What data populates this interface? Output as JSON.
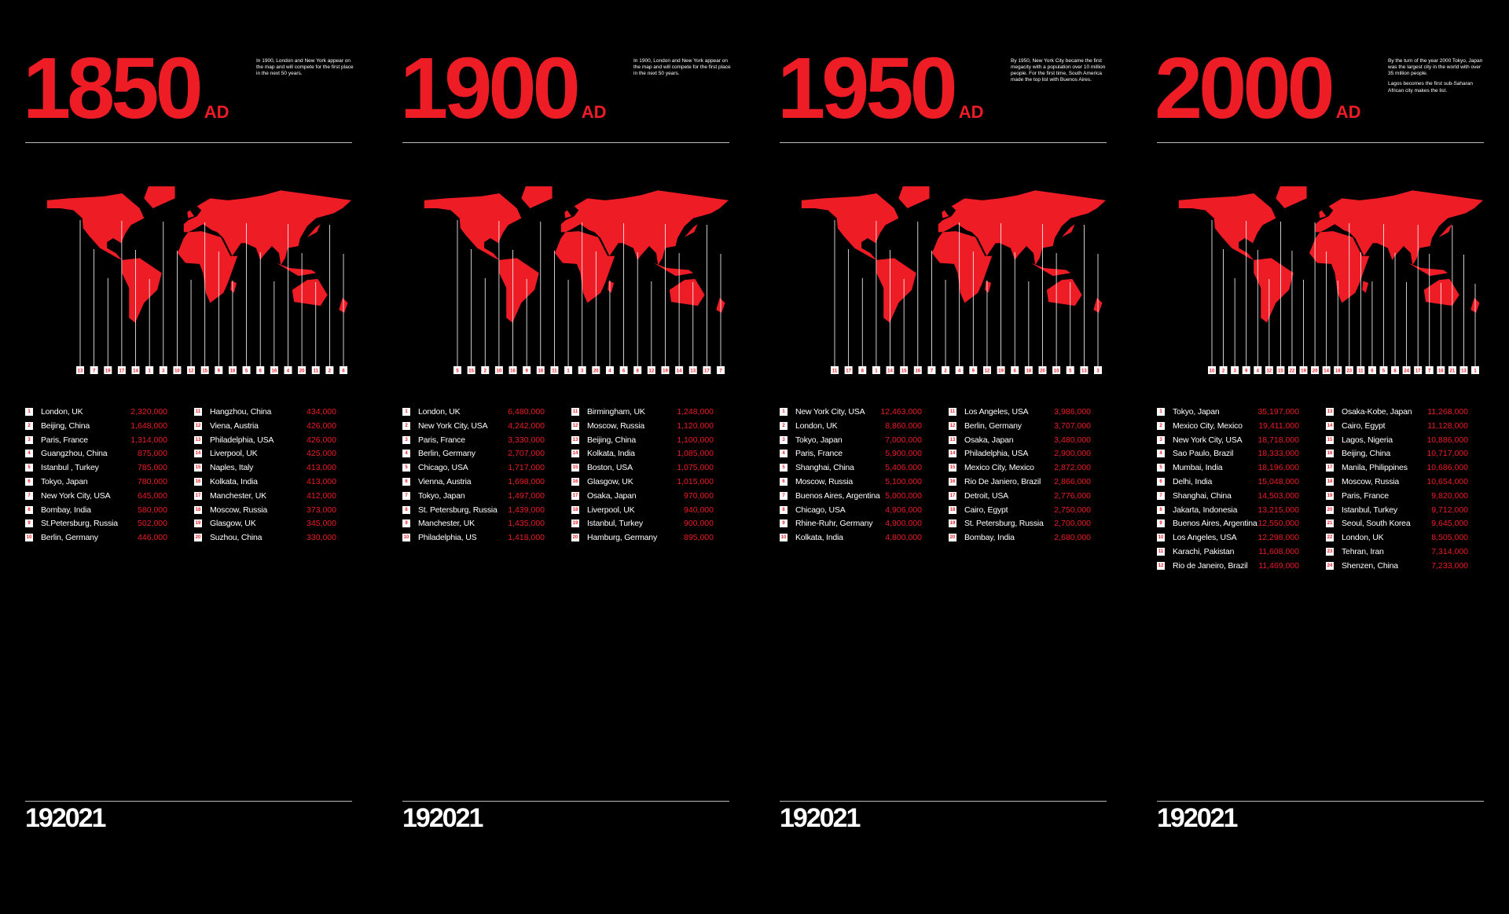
{
  "panels": [
    {
      "year": "1850",
      "era": "AD",
      "description": [
        "In 1900, London and New York appear on the map and will compete for the first place in the next 50 years."
      ],
      "map_markers": [
        13,
        7,
        19,
        17,
        14,
        1,
        3,
        10,
        12,
        15,
        9,
        18,
        5,
        8,
        16,
        4,
        20,
        11,
        2,
        6
      ],
      "cities": [
        {
          "rank": 1,
          "name": "London, UK",
          "population": "2,320,000"
        },
        {
          "rank": 2,
          "name": "Beijing, China",
          "population": "1,648,000"
        },
        {
          "rank": 3,
          "name": "Paris, France",
          "population": "1,314,000"
        },
        {
          "rank": 4,
          "name": "Guangzhou, China",
          "population": "875,000"
        },
        {
          "rank": 5,
          "name": "Istanbul , Turkey",
          "population": "785,000"
        },
        {
          "rank": 6,
          "name": "Tokyo, Japan",
          "population": "780,000"
        },
        {
          "rank": 7,
          "name": "New York City, USA",
          "population": "645,000"
        },
        {
          "rank": 8,
          "name": "Bombay, India",
          "population": "580,000"
        },
        {
          "rank": 9,
          "name": "St.Petersburg, Russia",
          "population": "502,000"
        },
        {
          "rank": 10,
          "name": "Berlin, Germany",
          "population": "446,000"
        },
        {
          "rank": 11,
          "name": "Hangzhou, China",
          "population": "434,000"
        },
        {
          "rank": 12,
          "name": "Viena, Austria",
          "population": "426,000"
        },
        {
          "rank": 13,
          "name": "Philadelphia, USA",
          "population": "426,000"
        },
        {
          "rank": 14,
          "name": "Liverpool, UK",
          "population": "425,000"
        },
        {
          "rank": 15,
          "name": "Naples, Italy",
          "population": "413,000"
        },
        {
          "rank": 16,
          "name": "Kolkata, India",
          "population": "413,000"
        },
        {
          "rank": 17,
          "name": "Manchester, UK",
          "population": "412,000"
        },
        {
          "rank": 18,
          "name": "Moscow, Russia",
          "population": "373,000"
        },
        {
          "rank": 19,
          "name": "Glasgow, UK",
          "population": "345,000"
        },
        {
          "rank": 20,
          "name": "Suzhou, China",
          "population": "330,000"
        }
      ]
    },
    {
      "year": "1900",
      "era": "AD",
      "description": [
        "In 1900, London and New York appear on the map and will compete for the first place in the next 50 years."
      ],
      "map_markers": [
        5,
        15,
        2,
        10,
        16,
        9,
        18,
        11,
        1,
        3,
        20,
        4,
        6,
        8,
        12,
        19,
        14,
        13,
        17,
        7
      ],
      "cities": [
        {
          "rank": 1,
          "name": "London, UK",
          "population": "6,480,000"
        },
        {
          "rank": 2,
          "name": "New York City, USA",
          "population": "4,242,000"
        },
        {
          "rank": 3,
          "name": "Paris, France",
          "population": "3,330,000"
        },
        {
          "rank": 4,
          "name": "Berlin, Germany",
          "population": "2,707,000"
        },
        {
          "rank": 5,
          "name": "Chicago, USA",
          "population": "1,717,000"
        },
        {
          "rank": 6,
          "name": "Vienna, Austria",
          "population": "1,698,000"
        },
        {
          "rank": 7,
          "name": "Tokyo, Japan",
          "population": "1,497,000"
        },
        {
          "rank": 8,
          "name": "St. Petersburg, Russia",
          "population": "1,439,000"
        },
        {
          "rank": 9,
          "name": "Manchester, UK",
          "population": "1,435,000"
        },
        {
          "rank": 10,
          "name": "Philadelphia, US",
          "population": "1,418,000"
        },
        {
          "rank": 11,
          "name": "Birmingham, UK",
          "population": "1,248,000"
        },
        {
          "rank": 12,
          "name": "Moscow, Russia",
          "population": "1,120,000"
        },
        {
          "rank": 13,
          "name": "Beijing, China",
          "population": "1,100,000"
        },
        {
          "rank": 14,
          "name": "Kolkata, India",
          "population": "1,085,000"
        },
        {
          "rank": 15,
          "name": "Boston, USA",
          "population": "1,075,000"
        },
        {
          "rank": 16,
          "name": "Glasgow, UK",
          "population": "1,015,000"
        },
        {
          "rank": 17,
          "name": "Osaka, Japan",
          "population": "970,000"
        },
        {
          "rank": 18,
          "name": "Liverpool, UK",
          "population": "940,000"
        },
        {
          "rank": 19,
          "name": "Istanbul, Turkey",
          "population": "900,000"
        },
        {
          "rank": 20,
          "name": "Hamburg, Germany",
          "population": "895,000"
        }
      ]
    },
    {
      "year": "1950",
      "era": "AD",
      "description": [
        "By 1950, New York City became the first megacity with a population over 10 million people.  For the first time, South America made the top list with Buenos Aires."
      ],
      "map_markers": [
        11,
        17,
        8,
        1,
        14,
        15,
        16,
        7,
        2,
        4,
        9,
        12,
        19,
        6,
        18,
        20,
        10,
        5,
        13,
        3
      ],
      "cities": [
        {
          "rank": 1,
          "name": "New York City, USA",
          "population": "12,463,000"
        },
        {
          "rank": 2,
          "name": "London, UK",
          "population": "8,860,000"
        },
        {
          "rank": 3,
          "name": "Tokyo, Japan",
          "population": "7,000,000"
        },
        {
          "rank": 4,
          "name": "Paris, France",
          "population": "5,900,000"
        },
        {
          "rank": 5,
          "name": "Shanghai, China",
          "population": "5,406,000"
        },
        {
          "rank": 6,
          "name": "Moscow, Russia",
          "population": "5,100,000"
        },
        {
          "rank": 7,
          "name": "Buenos Aires, Argentina",
          "population": "5,000,000"
        },
        {
          "rank": 8,
          "name": "Chicago, USA",
          "population": "4,906,000"
        },
        {
          "rank": 9,
          "name": "Rhine-Ruhr, Germany",
          "population": "4,900,000"
        },
        {
          "rank": 10,
          "name": "Kolkata, India",
          "population": "4,800,000"
        },
        {
          "rank": 11,
          "name": "Los Angeles, USA",
          "population": "3,986,000"
        },
        {
          "rank": 12,
          "name": "Berlin, Germany",
          "population": "3,707,000"
        },
        {
          "rank": 13,
          "name": "Osaka, Japan",
          "population": "3,480,000"
        },
        {
          "rank": 14,
          "name": "Philadelphia, USA",
          "population": "2,900,000"
        },
        {
          "rank": 15,
          "name": "Mexico City, Mexico",
          "population": "2,872,000"
        },
        {
          "rank": 16,
          "name": "Rio De Janiero, Brazil",
          "population": "2,866,000"
        },
        {
          "rank": 17,
          "name": "Detroit, USA",
          "population": "2,776,000"
        },
        {
          "rank": 18,
          "name": "Cairo, Egypt",
          "population": "2,750,000"
        },
        {
          "rank": 19,
          "name": "St. Petersburg, Russia",
          "population": "2,700,000"
        },
        {
          "rank": 20,
          "name": "Bombay, India",
          "population": "2,680,000"
        }
      ]
    },
    {
      "year": "2000",
      "era": "AD",
      "description": [
        "By the turn of the year 2000 Tokyo, Japan was the largest city in the world with over 35 million people.",
        "Lagos becomes the first sub-Saharan African city makes the list."
      ],
      "map_markers": [
        10,
        2,
        3,
        9,
        4,
        12,
        15,
        22,
        19,
        20,
        14,
        18,
        23,
        11,
        6,
        5,
        8,
        24,
        17,
        7,
        16,
        21,
        13,
        1
      ],
      "cities": [
        {
          "rank": 1,
          "name": "Tokyo, Japan",
          "population": "35,197,000"
        },
        {
          "rank": 2,
          "name": "Mexico City, Mexico",
          "population": "19,411,000"
        },
        {
          "rank": 3,
          "name": "New York City, USA",
          "population": "18,718,000"
        },
        {
          "rank": 4,
          "name": "Sao Paulo, Brazil",
          "population": "18,333,000"
        },
        {
          "rank": 5,
          "name": "Mumbai, India",
          "population": "18,196,000"
        },
        {
          "rank": 6,
          "name": "Delhi, India",
          "population": "15,048,000"
        },
        {
          "rank": 7,
          "name": "Shanghai, China",
          "population": "14,503,000"
        },
        {
          "rank": 8,
          "name": "Jakarta, Indonesia",
          "population": "13,215,000"
        },
        {
          "rank": 9,
          "name": "Buenos Aires, Argentina",
          "population": "12,550,000"
        },
        {
          "rank": 10,
          "name": "Los Angeles, USA",
          "population": "12,298,000"
        },
        {
          "rank": 11,
          "name": "Karachi, Pakistan",
          "population": "11,608,000"
        },
        {
          "rank": 12,
          "name": "Rio de Janeiro, Brazil",
          "population": "11,469,000"
        },
        {
          "rank": 13,
          "name": "Osaka-Kobe, Japan",
          "population": "11,268,000"
        },
        {
          "rank": 14,
          "name": "Cairo, Egypt",
          "population": "11,128,000"
        },
        {
          "rank": 15,
          "name": "Lagos, Nigeria",
          "population": "10,886,000"
        },
        {
          "rank": 16,
          "name": "Beijing, China",
          "population": "10,717,000"
        },
        {
          "rank": 17,
          "name": "Manila, Philippines",
          "population": "10,686,000"
        },
        {
          "rank": 18,
          "name": "Moscow, Russia",
          "population": "10,654,000"
        },
        {
          "rank": 19,
          "name": "Paris, France",
          "population": "9,820,000"
        },
        {
          "rank": 20,
          "name": "Istanbul, Turkey",
          "population": "9,712,000"
        },
        {
          "rank": 21,
          "name": "Seoul, South Korea",
          "population": "9,645,000"
        },
        {
          "rank": 22,
          "name": "London, UK",
          "population": "8,505,000"
        },
        {
          "rank": 23,
          "name": "Tehran, Iran",
          "population": "7,314,000"
        },
        {
          "rank": 24,
          "name": "Shenzen, China",
          "population": "7,233,000"
        }
      ]
    }
  ],
  "logo": "192021"
}
